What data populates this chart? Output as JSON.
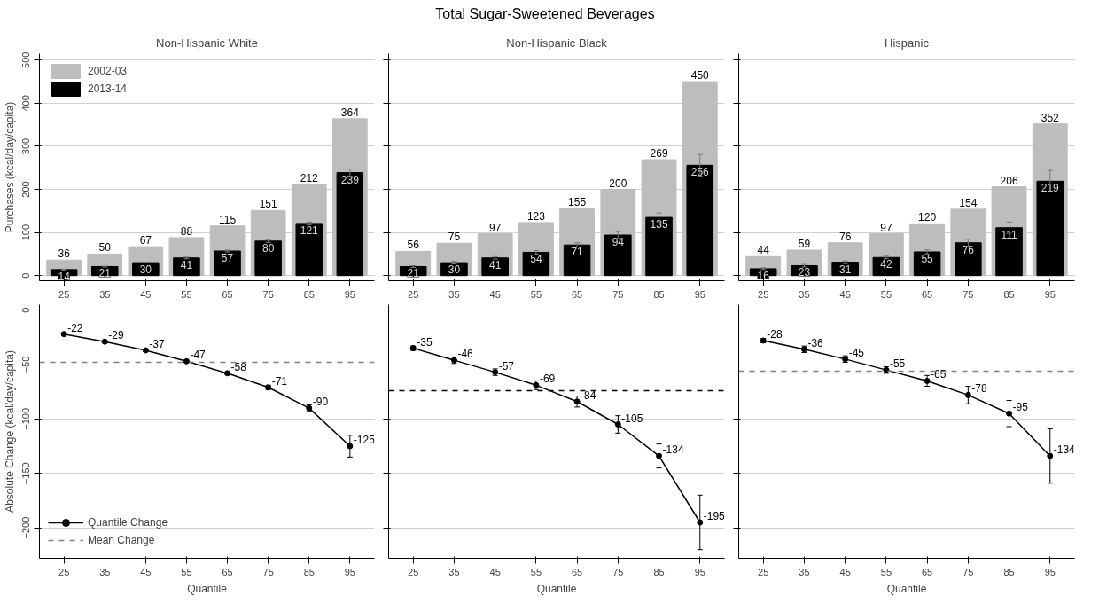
{
  "chart_data": [
    {
      "type": "bar",
      "title": "Non-Hispanic White",
      "ylabel": "Purchases (kcal/day/capita)",
      "annotations": [
        "Total Sugar-Sweetened Beverages"
      ],
      "x": [
        25,
        35,
        45,
        55,
        65,
        75,
        85,
        95
      ],
      "xlim": [
        19,
        101
      ],
      "xticks": [
        25,
        35,
        45,
        55,
        65,
        75,
        85,
        95
      ],
      "ylim": [
        -12,
        515
      ],
      "yticks": [
        0,
        100,
        200,
        300,
        400,
        500
      ],
      "grid": "y",
      "legend": "top left",
      "data_labels": true,
      "series": [
        {
          "name": "2002-03",
          "color": "#bdbdbd",
          "values": [
            36,
            50,
            67,
            88,
            115,
            151,
            212,
            364
          ]
        },
        {
          "name": "2013-14",
          "color": "#000000",
          "values": [
            14,
            21,
            30,
            41,
            57,
            80,
            121,
            239
          ],
          "errors": [
            1,
            1,
            1,
            2,
            2,
            3,
            3,
            8
          ]
        }
      ]
    },
    {
      "type": "bar",
      "title": "Non-Hispanic Black",
      "x": [
        25,
        35,
        45,
        55,
        65,
        75,
        85,
        95
      ],
      "xlim": [
        19,
        101
      ],
      "xticks": [
        25,
        35,
        45,
        55,
        65,
        75,
        85,
        95
      ],
      "ylim": [
        -12,
        515
      ],
      "yticks": [
        0,
        100,
        200,
        300,
        400,
        500
      ],
      "grid": "y",
      "tick_labels": "x",
      "data_labels": true,
      "series": [
        {
          "color": "#bdbdbd",
          "values": [
            56,
            75,
            97,
            123,
            155,
            200,
            269,
            450
          ]
        },
        {
          "color": "#000000",
          "values": [
            21,
            30,
            41,
            54,
            71,
            94,
            135,
            256
          ],
          "errors": [
            2,
            3,
            3,
            4,
            5,
            8,
            10,
            25
          ]
        }
      ]
    },
    {
      "type": "bar",
      "title": "Hispanic",
      "x": [
        25,
        35,
        45,
        55,
        65,
        75,
        85,
        95
      ],
      "xlim": [
        19,
        101
      ],
      "xticks": [
        25,
        35,
        45,
        55,
        65,
        75,
        85,
        95
      ],
      "ylim": [
        -12,
        515
      ],
      "yticks": [
        0,
        100,
        200,
        300,
        400,
        500
      ],
      "grid": "y",
      "tick_labels": "x",
      "data_labels": true,
      "series": [
        {
          "color": "#bdbdbd",
          "values": [
            44,
            59,
            76,
            97,
            120,
            154,
            206,
            352
          ]
        },
        {
          "color": "#000000",
          "values": [
            16,
            23,
            31,
            42,
            55,
            76,
            111,
            219
          ],
          "errors": [
            2,
            3,
            3,
            3,
            5,
            8,
            13,
            25
          ]
        }
      ]
    },
    {
      "type": "line",
      "xlabel": "Quantile",
      "ylabel": "Absolute Change (kcal/day/capita)",
      "x": [
        25,
        35,
        45,
        55,
        65,
        75,
        85,
        95
      ],
      "xlim": [
        19,
        101
      ],
      "xticks": [
        25,
        35,
        45,
        55,
        65,
        75,
        85,
        95
      ],
      "ylim": [
        -228,
        5
      ],
      "yticks": [
        0,
        -50,
        -100,
        -150,
        -200
      ],
      "grid": "y",
      "legend": "bottom left",
      "marker": "circle",
      "data_labels": true,
      "ref_lines": [
        {
          "axis": "y",
          "value": -48,
          "label": "Mean Change",
          "color": "#808080",
          "line_style": "dashed"
        }
      ],
      "series": [
        {
          "name": "Quantile Change",
          "color": "#000000",
          "values": [
            -22,
            -29,
            -37,
            -47,
            -58,
            -71,
            -90,
            -125
          ],
          "errors": [
            1,
            1,
            1,
            1,
            1,
            2,
            3,
            10
          ]
        }
      ]
    },
    {
      "type": "line",
      "xlabel": "Quantile",
      "x": [
        25,
        35,
        45,
        55,
        65,
        75,
        85,
        95
      ],
      "xlim": [
        19,
        101
      ],
      "xticks": [
        25,
        35,
        45,
        55,
        65,
        75,
        85,
        95
      ],
      "ylim": [
        -228,
        5
      ],
      "yticks": [
        0,
        -50,
        -100,
        -150,
        -200
      ],
      "grid": "y",
      "tick_labels": "x",
      "marker": "circle",
      "data_labels": true,
      "ref_lines": [
        {
          "axis": "y",
          "value": -74,
          "label": null,
          "color": "#000000",
          "line_style": "dashed"
        }
      ],
      "series": [
        {
          "color": "#000000",
          "values": [
            -35,
            -46,
            -57,
            -69,
            -84,
            -105,
            -134,
            -195
          ],
          "errors": [
            2,
            3,
            3,
            4,
            5,
            8,
            11,
            25
          ]
        }
      ]
    },
    {
      "type": "line",
      "xlabel": "Quantile",
      "x": [
        25,
        35,
        45,
        55,
        65,
        75,
        85,
        95
      ],
      "xlim": [
        19,
        101
      ],
      "xticks": [
        25,
        35,
        45,
        55,
        65,
        75,
        85,
        95
      ],
      "ylim": [
        -228,
        5
      ],
      "yticks": [
        0,
        -50,
        -100,
        -150,
        -200
      ],
      "grid": "y",
      "tick_labels": "x",
      "marker": "circle",
      "data_labels": true,
      "ref_lines": [
        {
          "axis": "y",
          "value": -56,
          "label": null,
          "color": "#808080",
          "line_style": "dashed"
        }
      ],
      "series": [
        {
          "color": "#000000",
          "values": [
            -28,
            -36,
            -45,
            -55,
            -65,
            -78,
            -95,
            -134
          ],
          "errors": [
            2,
            3,
            3,
            3,
            5,
            8,
            12,
            25
          ]
        }
      ]
    }
  ]
}
